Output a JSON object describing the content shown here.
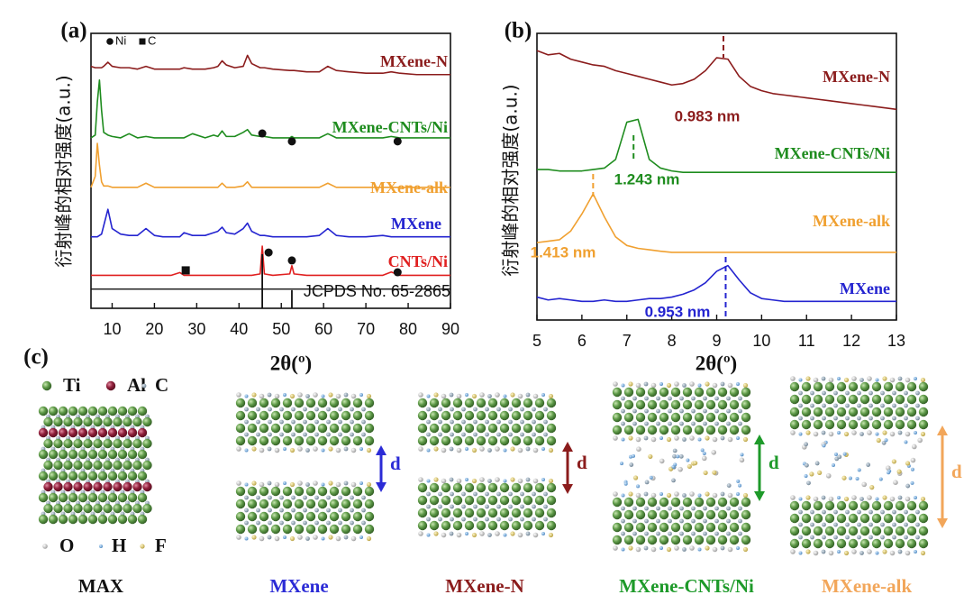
{
  "chart_data": [
    {
      "type": "line",
      "label": "(a)",
      "xlabel": "2θ(º)",
      "ylabel": "衍射峰的相对强度(a.u.)",
      "xlim": [
        5,
        90
      ],
      "xticks": [
        10,
        20,
        30,
        40,
        50,
        60,
        70,
        80,
        90
      ],
      "ylim": [
        0,
        100
      ],
      "x": [
        5,
        6,
        6.5,
        7,
        7.5,
        8,
        9,
        10,
        12,
        14,
        16,
        18,
        20,
        22,
        24,
        26,
        27,
        29,
        32,
        34,
        35,
        36,
        37,
        39,
        41,
        42,
        43,
        45,
        45.5,
        46,
        48,
        52,
        52.5,
        53,
        56,
        59,
        61,
        63,
        66,
        70,
        74,
        76,
        78,
        82,
        86,
        90
      ],
      "series": [
        {
          "name": "MXene-N",
          "color": "#8b1c1c",
          "values": [
            88,
            87.5,
            87.5,
            87.5,
            87.5,
            88,
            89.5,
            88,
            87.5,
            87.5,
            87,
            88,
            87,
            87,
            87,
            87,
            87.5,
            87,
            87,
            87.5,
            88,
            90,
            88.5,
            87.5,
            88,
            92,
            89,
            87.5,
            87.5,
            87.5,
            87,
            86.5,
            86.5,
            86.5,
            86,
            86,
            88,
            86.5,
            86,
            85.5,
            85.5,
            86,
            85.5,
            85,
            85,
            85
          ]
        },
        {
          "name": "MXene-CNTs/Ni",
          "color": "#1e8c1e",
          "values": [
            62,
            63,
            75,
            83,
            72,
            64,
            63,
            62.5,
            62,
            63.5,
            62,
            62.5,
            62,
            62,
            62,
            62,
            62,
            63.5,
            62,
            63,
            62.5,
            64.5,
            62.5,
            62.5,
            64,
            65,
            63,
            62.5,
            64,
            62.5,
            62,
            62,
            62.5,
            62,
            62,
            62,
            63.5,
            62,
            62,
            62,
            62,
            62.5,
            62,
            62,
            62,
            62
          ]
        },
        {
          "name": "MXene-alk",
          "color": "#f0a030",
          "values": [
            44,
            48,
            60,
            52,
            46,
            44.5,
            44.5,
            44,
            44,
            44,
            44,
            45.5,
            44,
            44,
            44,
            44,
            44,
            44,
            44,
            44,
            44,
            45.5,
            44,
            44,
            44.5,
            46,
            44,
            44,
            44,
            44,
            44,
            44,
            44,
            44,
            44,
            44,
            45.5,
            44,
            44,
            44,
            44,
            44,
            44,
            44,
            44,
            44
          ]
        },
        {
          "name": "MXene",
          "color": "#2424d0",
          "values": [
            26,
            26,
            26,
            26.5,
            27,
            30,
            36,
            29,
            27,
            26.5,
            26.5,
            29,
            26.5,
            26,
            26,
            26,
            27.5,
            26.5,
            26.5,
            27.5,
            28,
            29.5,
            27.5,
            27,
            29,
            31,
            28,
            26.5,
            26.5,
            26.5,
            26,
            26,
            26,
            26,
            26,
            26.5,
            29,
            26.5,
            26,
            26,
            26.5,
            26,
            26,
            26,
            26,
            26
          ]
        },
        {
          "name": "CNTs/Ni",
          "color": "#e02020",
          "values": [
            12,
            12,
            12,
            12,
            12,
            12,
            12,
            12,
            12,
            12,
            12,
            12,
            12,
            12,
            12,
            13,
            12,
            12,
            12,
            12,
            12,
            12,
            12,
            12,
            12,
            12,
            12,
            12.5,
            22.6,
            12.5,
            12,
            12.5,
            15.5,
            12.5,
            12,
            12,
            12,
            12,
            12,
            12,
            12,
            13.2,
            12,
            12,
            12,
            12
          ]
        }
      ],
      "reference": {
        "name": "JCPDS No. 65-2865",
        "color": "#111111",
        "baseline": 7,
        "x": [
          45.5,
          52.5
        ],
        "values": [
          19.7,
          6.6
        ]
      },
      "markers": [
        {
          "symbol": "circle",
          "x": 45.5,
          "y": 63.6
        },
        {
          "symbol": "circle",
          "x": 52.5,
          "y": 60.7
        },
        {
          "symbol": "circle",
          "x": 77.5,
          "y": 60.7
        },
        {
          "symbol": "circle",
          "x": 47,
          "y": 20.3
        },
        {
          "symbol": "circle",
          "x": 52.5,
          "y": 17.4
        },
        {
          "symbol": "circle",
          "x": 77.5,
          "y": 13.1
        },
        {
          "symbol": "square",
          "x": 27.4,
          "y": 13.8
        }
      ],
      "marker_color": "#111111",
      "marker_legend": [
        {
          "symbol": "circle",
          "label": "Ni"
        },
        {
          "symbol": "square",
          "label": "C"
        }
      ]
    },
    {
      "type": "line",
      "label": "(b)",
      "xlabel": "2θ(º)",
      "ylabel": "衍射峰的相对强度(a.u.)",
      "xlim": [
        5,
        13
      ],
      "xticks": [
        5,
        6,
        7,
        8,
        9,
        10,
        11,
        12,
        13
      ],
      "ylim": [
        0,
        100
      ],
      "x": [
        5,
        5.25,
        5.5,
        5.75,
        6,
        6.25,
        6.5,
        6.75,
        7,
        7.25,
        7.5,
        7.75,
        8,
        8.25,
        8.5,
        8.75,
        9,
        9.25,
        9.5,
        9.75,
        10,
        10.25,
        10.5,
        10.75,
        11,
        11.25,
        11.5,
        11.75,
        12,
        12.25,
        12.5,
        12.75,
        13
      ],
      "series": [
        {
          "name": "MXene-N",
          "color": "#8b1c1c",
          "values": [
            94,
            92.5,
            93,
            91,
            90,
            89,
            88.5,
            87,
            86,
            85,
            84,
            83,
            82,
            82.5,
            84,
            87,
            91.5,
            91,
            85,
            81.5,
            80,
            79,
            78.5,
            78,
            77.5,
            77,
            76.5,
            76,
            75.5,
            75,
            74.5,
            74,
            73.5
          ]
        },
        {
          "name": "MXene-CNTs/Ni",
          "color": "#1e8c1e",
          "values": [
            52.5,
            52.5,
            52,
            52,
            52,
            52.5,
            53,
            56,
            69,
            70,
            56,
            53,
            52,
            51.5,
            51.5,
            51.5,
            51.5,
            51.5,
            51.5,
            51.5,
            51.5,
            51.5,
            51.5,
            51.5,
            51.5,
            51.5,
            51.5,
            51.5,
            51.5,
            51.5,
            51.5,
            51.5,
            51.5
          ]
        },
        {
          "name": "MXene-alk",
          "color": "#f0a030",
          "values": [
            27,
            27.5,
            28,
            31,
            37,
            44,
            36,
            29,
            26,
            25,
            24.5,
            24,
            23.6,
            23.6,
            23.6,
            23.6,
            23.6,
            23.6,
            23.6,
            23.6,
            23.6,
            23.6,
            23.6,
            23.6,
            23.6,
            23.6,
            23.6,
            23.6,
            23.6,
            23.6,
            23.6,
            23.6,
            23.6
          ]
        },
        {
          "name": "MXene",
          "color": "#2424d0",
          "values": [
            8,
            7,
            7.5,
            7,
            6.5,
            6.5,
            7,
            6.5,
            6.5,
            7,
            7.5,
            7.5,
            8,
            9,
            10.5,
            13,
            17,
            19,
            14,
            9.5,
            7.5,
            7,
            6.5,
            6.5,
            6.5,
            6.5,
            6.5,
            6.5,
            6.5,
            6.5,
            6.5,
            6.5,
            6.5
          ]
        }
      ],
      "annotations": [
        {
          "x": 9.15,
          "text": "0.983 nm",
          "color": "#8b1c1c"
        },
        {
          "x": 7.15,
          "text": "1.243 nm",
          "color": "#1e8c1e"
        },
        {
          "x": 6.25,
          "text": "1.413 nm",
          "color": "#f0a030"
        },
        {
          "x": 9.2,
          "text": "0.953 nm",
          "color": "#2424d0"
        }
      ]
    }
  ],
  "panel_c": {
    "label": "(c)",
    "legend": [
      "Ti",
      "Al",
      "C",
      "O",
      "H",
      "F"
    ],
    "structures": [
      {
        "name": "MAX",
        "color": "#111111"
      },
      {
        "name": "MXene",
        "color": "#2b2bd6",
        "spacing": "d"
      },
      {
        "name": "MXene-N",
        "color": "#8b1c1c",
        "spacing": "d"
      },
      {
        "name": "MXene-CNTs/Ni",
        "color": "#1e9a2a",
        "spacing": "d"
      },
      {
        "name": "MXene-alk",
        "color": "#f2a65a",
        "spacing": "d"
      }
    ]
  }
}
